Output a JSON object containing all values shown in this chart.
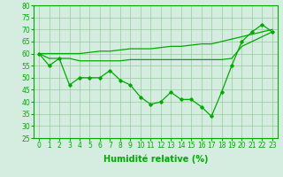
{
  "line1": [
    60,
    55,
    58,
    47,
    50,
    50,
    50,
    53,
    49,
    47,
    42,
    39,
    40,
    44,
    41,
    41,
    38,
    34,
    44,
    55,
    65,
    69,
    72,
    69
  ],
  "line2": [
    60,
    60,
    60,
    60,
    60,
    60.5,
    61,
    61,
    61.5,
    62,
    62,
    62,
    62.5,
    63,
    63,
    63.5,
    64,
    64,
    65,
    66,
    67,
    68,
    69,
    70
  ],
  "line3": [
    60,
    58,
    58,
    58,
    57,
    57,
    57,
    57,
    57,
    57.5,
    57.5,
    57.5,
    57.5,
    57.5,
    57.5,
    57.5,
    57.5,
    57.5,
    57.5,
    58,
    63,
    65,
    67,
    69
  ],
  "x": [
    0,
    1,
    2,
    3,
    4,
    5,
    6,
    7,
    8,
    9,
    10,
    11,
    12,
    13,
    14,
    15,
    16,
    17,
    18,
    19,
    20,
    21,
    22,
    23
  ],
  "line_color": "#00aa00",
  "bg_color": "#d4ede0",
  "grid_color": "#99cc99",
  "xlabel": "Humidité relative (%)",
  "ylim": [
    25,
    80
  ],
  "xlim": [
    -0.5,
    23.5
  ],
  "yticks": [
    25,
    30,
    35,
    40,
    45,
    50,
    55,
    60,
    65,
    70,
    75,
    80
  ],
  "xticks": [
    0,
    1,
    2,
    3,
    4,
    5,
    6,
    7,
    8,
    9,
    10,
    11,
    12,
    13,
    14,
    15,
    16,
    17,
    18,
    19,
    20,
    21,
    22,
    23
  ],
  "marker": "D",
  "marker_size": 1.8,
  "line_width": 0.9,
  "xlabel_fontsize": 7,
  "tick_fontsize": 5.5
}
